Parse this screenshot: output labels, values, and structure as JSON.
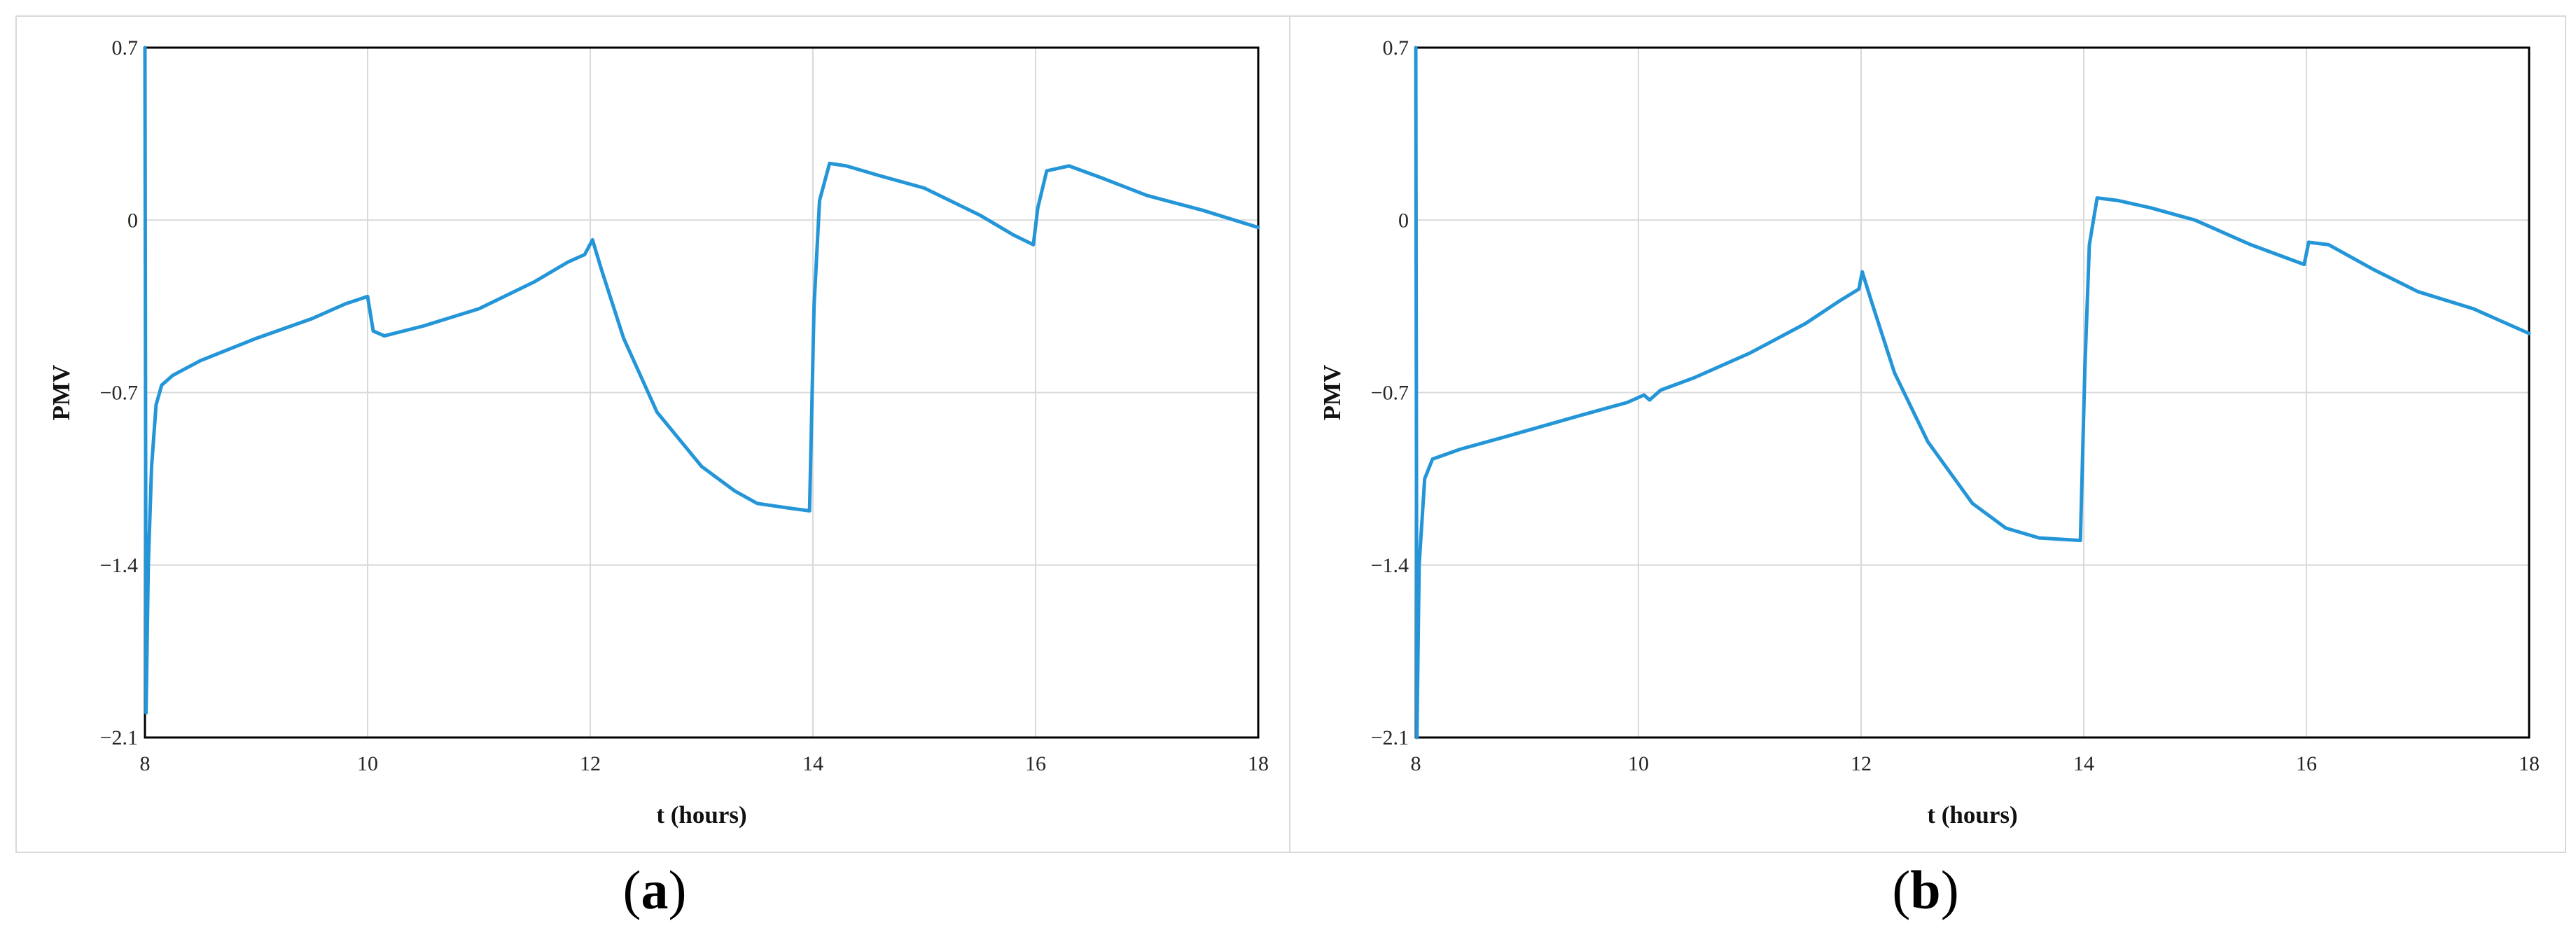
{
  "chart_data": [
    {
      "type": "line",
      "panel_label": "a",
      "xlabel": "t (hours)",
      "ylabel": "PMV",
      "xlim": [
        8,
        18
      ],
      "ylim": [
        -2.1,
        0.7
      ],
      "x_ticks": [
        "8",
        "10",
        "12",
        "14",
        "16",
        "18"
      ],
      "y_ticks": [
        "0.7",
        "0",
        "−0.7",
        "−1.4",
        "−2.1"
      ],
      "grid": true,
      "line_color": "#2496d8",
      "series": [
        {
          "points": [
            [
              8.0,
              0.7
            ],
            [
              8.01,
              -2.0
            ],
            [
              8.03,
              -1.4
            ],
            [
              8.06,
              -1.0
            ],
            [
              8.1,
              -0.75
            ],
            [
              8.15,
              -0.67
            ],
            [
              8.25,
              -0.63
            ],
            [
              8.5,
              -0.57
            ],
            [
              9.0,
              -0.48
            ],
            [
              9.5,
              -0.4
            ],
            [
              9.8,
              -0.34
            ],
            [
              10.0,
              -0.31
            ],
            [
              10.05,
              -0.45
            ],
            [
              10.15,
              -0.47
            ],
            [
              10.5,
              -0.43
            ],
            [
              11.0,
              -0.36
            ],
            [
              11.5,
              -0.25
            ],
            [
              11.8,
              -0.17
            ],
            [
              11.95,
              -0.14
            ],
            [
              12.02,
              -0.08
            ],
            [
              12.1,
              -0.2
            ],
            [
              12.3,
              -0.48
            ],
            [
              12.6,
              -0.78
            ],
            [
              13.0,
              -1.0
            ],
            [
              13.3,
              -1.1
            ],
            [
              13.5,
              -1.15
            ],
            [
              13.8,
              -1.17
            ],
            [
              13.97,
              -1.18
            ],
            [
              14.01,
              -0.35
            ],
            [
              14.06,
              0.08
            ],
            [
              14.15,
              0.23
            ],
            [
              14.3,
              0.22
            ],
            [
              14.6,
              0.18
            ],
            [
              15.0,
              0.13
            ],
            [
              15.5,
              0.02
            ],
            [
              15.8,
              -0.06
            ],
            [
              15.98,
              -0.1
            ],
            [
              16.02,
              0.05
            ],
            [
              16.1,
              0.2
            ],
            [
              16.3,
              0.22
            ],
            [
              16.6,
              0.17
            ],
            [
              17.0,
              0.1
            ],
            [
              17.5,
              0.04
            ],
            [
              18.0,
              -0.03
            ]
          ]
        }
      ]
    },
    {
      "type": "line",
      "panel_label": "b",
      "xlabel": "t (hours)",
      "ylabel": "PMV",
      "xlim": [
        8,
        18
      ],
      "ylim": [
        -2.1,
        0.7
      ],
      "x_ticks": [
        "8",
        "10",
        "12",
        "14",
        "16",
        "18"
      ],
      "y_ticks": [
        "0.7",
        "0",
        "−0.7",
        "−1.4",
        "−2.1"
      ],
      "grid": true,
      "line_color": "#2496d8",
      "series": [
        {
          "points": [
            [
              8.0,
              0.7
            ],
            [
              8.01,
              -2.1
            ],
            [
              8.03,
              -1.4
            ],
            [
              8.08,
              -1.05
            ],
            [
              8.15,
              -0.97
            ],
            [
              8.4,
              -0.93
            ],
            [
              8.8,
              -0.88
            ],
            [
              9.5,
              -0.79
            ],
            [
              9.9,
              -0.74
            ],
            [
              10.05,
              -0.71
            ],
            [
              10.1,
              -0.73
            ],
            [
              10.2,
              -0.69
            ],
            [
              10.5,
              -0.64
            ],
            [
              11.0,
              -0.54
            ],
            [
              11.5,
              -0.42
            ],
            [
              11.8,
              -0.33
            ],
            [
              11.98,
              -0.28
            ],
            [
              12.01,
              -0.21
            ],
            [
              12.1,
              -0.34
            ],
            [
              12.3,
              -0.62
            ],
            [
              12.6,
              -0.9
            ],
            [
              13.0,
              -1.15
            ],
            [
              13.3,
              -1.25
            ],
            [
              13.6,
              -1.29
            ],
            [
              13.97,
              -1.3
            ],
            [
              14.01,
              -0.6
            ],
            [
              14.05,
              -0.1
            ],
            [
              14.12,
              0.09
            ],
            [
              14.3,
              0.08
            ],
            [
              14.6,
              0.05
            ],
            [
              15.0,
              0.0
            ],
            [
              15.5,
              -0.1
            ],
            [
              15.98,
              -0.18
            ],
            [
              16.02,
              -0.09
            ],
            [
              16.2,
              -0.1
            ],
            [
              16.6,
              -0.2
            ],
            [
              17.0,
              -0.29
            ],
            [
              17.5,
              -0.36
            ],
            [
              18.0,
              -0.46
            ]
          ]
        }
      ]
    }
  ]
}
